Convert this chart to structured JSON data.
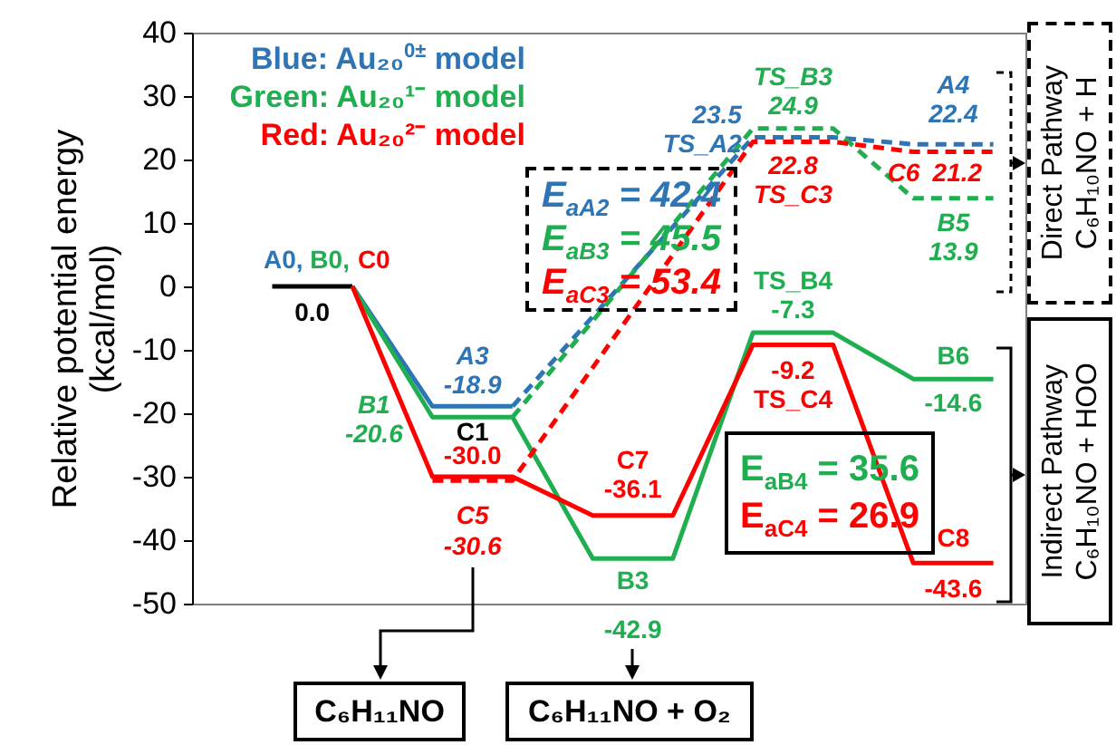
{
  "chart_data": {
    "type": "line",
    "ylabel": "Relative potential energy (kcal/mol)",
    "categories": [
      null,
      null,
      null,
      null,
      null,
      null,
      null,
      null,
      null,
      null
    ],
    "ylim": [
      -50,
      40
    ],
    "yticks": [
      -50,
      -40,
      -30,
      -20,
      -10,
      0,
      10,
      20,
      30,
      40
    ],
    "tick_labels": "y",
    "legend": "top left",
    "series": [
      {
        "color": "#000000",
        "values": [
          0.0,
          0.0,
          null,
          null,
          null,
          null,
          null,
          null,
          null,
          null
        ],
        "value_labels": [
          "0.0",
          null,
          null,
          null,
          null,
          null,
          null,
          null,
          null,
          null
        ]
      },
      {
        "name": "Blue: Au₂₀$^{0±}$ model",
        "color": "#2e75b6",
        "values": [
          null,
          0.0,
          -18.9,
          -18.9,
          null,
          null,
          null,
          null,
          null,
          null
        ],
        "value_labels": [
          null,
          null,
          "-18.9",
          null,
          null,
          null,
          null,
          null,
          null,
          null
        ]
      },
      {
        "color": "#2e75b6",
        "line_style": "dashed",
        "values": [
          null,
          null,
          null,
          -18.9,
          null,
          null,
          23.5,
          23.5,
          22.4,
          22.4
        ],
        "value_labels": [
          null,
          null,
          null,
          null,
          null,
          null,
          "23.5",
          null,
          "22.4",
          null
        ]
      },
      {
        "name": "Green: Au₂₀¹⁻ model",
        "color": "#1fae50",
        "values": [
          null,
          0.0,
          -20.6,
          -20.6,
          -42.9,
          -42.9,
          -7.3,
          -7.3,
          -14.6,
          -14.6
        ],
        "value_labels": [
          null,
          null,
          "-20.6",
          null,
          "-42.9",
          null,
          "-7.3",
          null,
          "-14.6",
          null
        ]
      },
      {
        "color": "#1fae50",
        "line_style": "dashed",
        "values": [
          null,
          null,
          null,
          -20.6,
          null,
          null,
          24.9,
          24.9,
          13.9,
          13.9
        ],
        "value_labels": [
          null,
          null,
          null,
          null,
          null,
          null,
          "24.9",
          null,
          "13.9",
          null
        ]
      },
      {
        "name": "Red: Au₂₀²⁻ model",
        "color": "#ff0000",
        "values": [
          null,
          0.0,
          -30.0,
          -30.0,
          -36.1,
          -36.1,
          -9.2,
          -9.2,
          -43.6,
          -43.6
        ],
        "value_labels": [
          null,
          null,
          "-30.0",
          null,
          "-36.1",
          null,
          "-9.2",
          null,
          "-43.6",
          null
        ]
      },
      {
        "color": "#ff0000",
        "line_style": "dashed",
        "values": [
          null,
          null,
          -30.6,
          -30.6,
          null,
          null,
          22.8,
          22.8,
          21.2,
          21.2
        ],
        "value_labels": [
          null,
          null,
          "-30.6",
          null,
          null,
          null,
          "22.8",
          null,
          "21.2",
          null
        ]
      }
    ],
    "annotations": [
      "A0,",
      "B0,",
      "C0",
      "A3",
      "B1",
      "C1",
      "C5",
      "C7",
      "B3",
      "TS_A2",
      "TS_B3",
      "TS_C3",
      "TS_B4",
      "TS_C4",
      "A4",
      "C6",
      "B5",
      "B6",
      "C8",
      "E$_{aA2}$ = 42.4",
      "E$_{aB3}$ = 45.5",
      "E$_{aC3}$ = 53.4",
      "E$_{aB4}$ = 35.6",
      "E$_{aC4}$ = 26.9",
      "Direct Pathway",
      "C₆H₁₀NO + H",
      "Indirect Pathway",
      "C₆H₁₀NO + HOO",
      "C₆H₁₁NO",
      "C₆H₁₁NO + O₂"
    ]
  }
}
